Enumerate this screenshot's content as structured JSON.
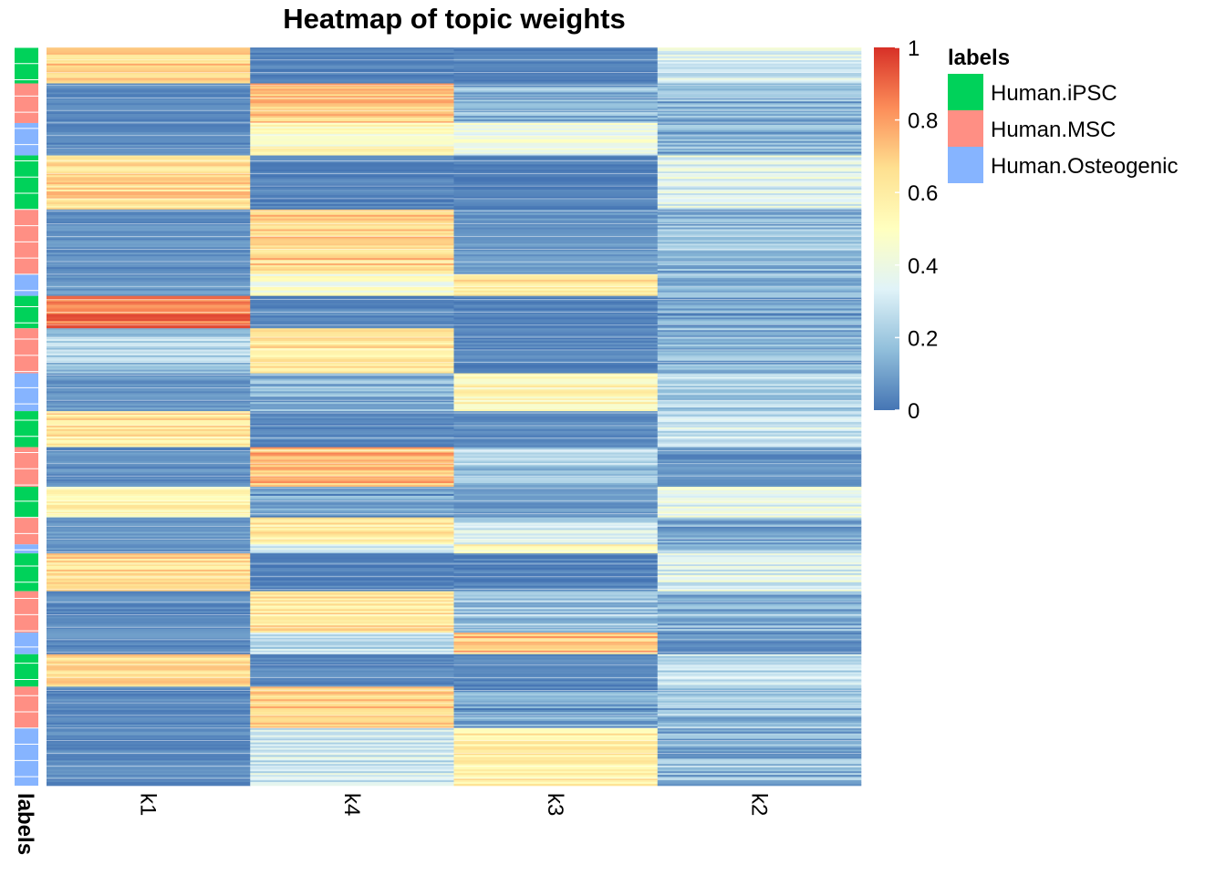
{
  "chart_data": {
    "type": "heatmap",
    "title": "Heatmap of topic weights",
    "columns": [
      "k1",
      "k4",
      "k3",
      "k2"
    ],
    "annotation_label": "labels",
    "color_scale": {
      "min": 0,
      "max": 1,
      "ticks": [
        0,
        0.2,
        0.4,
        0.6,
        0.8,
        1
      ],
      "tick_labels": [
        "0",
        "0.2",
        "0.4",
        "0.6",
        "0.8",
        "1"
      ],
      "colors": [
        "#4575b4",
        "#91bfdb",
        "#e0f3f8",
        "#ffffbf",
        "#fee090",
        "#fc8d59",
        "#d73027"
      ]
    },
    "legend": {
      "title": "labels",
      "entries": [
        {
          "label": "Human.iPSC",
          "color": "#00d25a"
        },
        {
          "label": "Human.MSC",
          "color": "#ff8f84"
        },
        {
          "label": "Human.Osteogenic",
          "color": "#86b4ff"
        }
      ]
    },
    "row_blocks": [
      {
        "label": "Human.iPSC",
        "rows": 20,
        "k1": 0.68,
        "k4": 0.03,
        "k3": 0.02,
        "k2": 0.33
      },
      {
        "label": "Human.MSC",
        "rows": 22,
        "k1": 0.05,
        "k4": 0.72,
        "k3": 0.15,
        "k2": 0.14
      },
      {
        "label": "Human.Osteogenic",
        "rows": 18,
        "k1": 0.05,
        "k4": 0.5,
        "k3": 0.4,
        "k2": 0.12
      },
      {
        "label": "Human.iPSC",
        "rows": 30,
        "k1": 0.66,
        "k4": 0.03,
        "k3": 0.02,
        "k2": 0.35
      },
      {
        "label": "Human.MSC",
        "rows": 36,
        "k1": 0.06,
        "k4": 0.7,
        "k3": 0.08,
        "k2": 0.16
      },
      {
        "label": "Human.Osteogenic",
        "rows": 12,
        "k1": 0.08,
        "k4": 0.45,
        "k3": 0.62,
        "k2": 0.12
      },
      {
        "label": "Human.iPSC",
        "rows": 18,
        "k1": 0.85,
        "k4": 0.04,
        "k3": 0.02,
        "k2": 0.1
      },
      {
        "label": "Human.MSC",
        "rows": 25,
        "k1": 0.22,
        "k4": 0.62,
        "k3": 0.03,
        "k2": 0.16
      },
      {
        "label": "Human.Osteogenic",
        "rows": 21,
        "k1": 0.08,
        "k4": 0.14,
        "k3": 0.55,
        "k2": 0.24
      },
      {
        "label": "Human.iPSC",
        "rows": 20,
        "k1": 0.62,
        "k4": 0.04,
        "k3": 0.05,
        "k2": 0.3
      },
      {
        "label": "Human.MSC",
        "rows": 22,
        "k1": 0.06,
        "k4": 0.75,
        "k3": 0.2,
        "k2": 0.06
      },
      {
        "label": "Human.iPSC",
        "rows": 17,
        "k1": 0.55,
        "k4": 0.1,
        "k3": 0.08,
        "k2": 0.38
      },
      {
        "label": "Human.MSC",
        "rows": 15,
        "k1": 0.08,
        "k4": 0.6,
        "k3": 0.3,
        "k2": 0.12
      },
      {
        "label": "Human.Osteogenic",
        "rows": 5,
        "k1": 0.06,
        "k4": 0.3,
        "k3": 0.52,
        "k2": 0.15
      },
      {
        "label": "Human.iPSC",
        "rows": 21,
        "k1": 0.65,
        "k4": 0.03,
        "k3": 0.03,
        "k2": 0.35
      },
      {
        "label": "Human.MSC",
        "rows": 23,
        "k1": 0.05,
        "k4": 0.62,
        "k3": 0.2,
        "k2": 0.15
      },
      {
        "label": "Human.Osteogenic",
        "rows": 12,
        "k1": 0.05,
        "k4": 0.25,
        "k3": 0.72,
        "k2": 0.06
      },
      {
        "label": "Human.iPSC",
        "rows": 18,
        "k1": 0.65,
        "k4": 0.05,
        "k3": 0.03,
        "k2": 0.28
      },
      {
        "label": "Human.MSC",
        "rows": 23,
        "k1": 0.04,
        "k4": 0.7,
        "k3": 0.1,
        "k2": 0.18
      },
      {
        "label": "Human.Osteogenic",
        "rows": 32,
        "k1": 0.05,
        "k4": 0.3,
        "k3": 0.58,
        "k2": 0.15
      }
    ]
  }
}
